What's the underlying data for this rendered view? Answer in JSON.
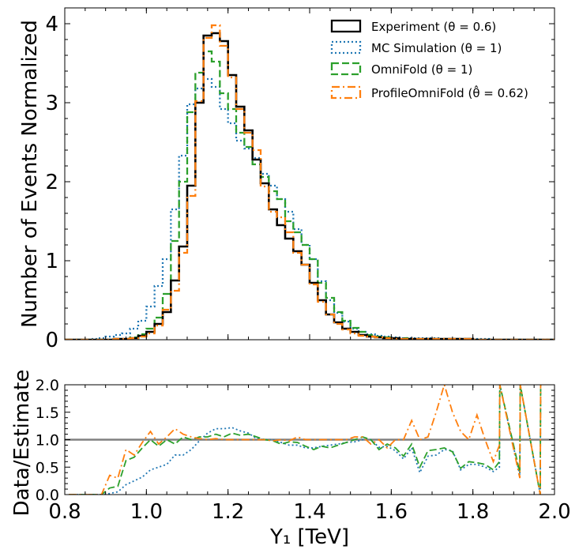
{
  "chart_data": [
    {
      "type": "step-histogram",
      "panel": "main",
      "xlabel": "Y₁ [TeV]",
      "ylabel": "Number of Events Normalized",
      "xlim": [
        0.8,
        2.0
      ],
      "ylim": [
        0,
        4.2
      ],
      "yticks": [
        "0",
        "1",
        "2",
        "3",
        "4"
      ],
      "bin_edges": [
        0.8,
        0.82,
        0.84,
        0.86,
        0.88,
        0.9,
        0.92,
        0.94,
        0.96,
        0.98,
        1.0,
        1.02,
        1.04,
        1.06,
        1.08,
        1.1,
        1.12,
        1.14,
        1.16,
        1.18,
        1.2,
        1.22,
        1.24,
        1.26,
        1.28,
        1.3,
        1.32,
        1.34,
        1.36,
        1.38,
        1.4,
        1.42,
        1.44,
        1.46,
        1.48,
        1.5,
        1.52,
        1.54,
        1.56,
        1.58,
        1.6,
        1.62,
        1.64,
        1.66,
        1.68,
        1.7,
        1.72,
        1.74,
        1.76,
        1.78,
        1.8,
        1.82,
        1.84,
        1.86,
        1.88,
        1.9,
        1.92,
        1.94,
        1.96,
        1.98,
        2.0
      ],
      "legend_position": "top-right",
      "series": [
        {
          "name": "Experiment (θ = 0.6)",
          "color": "#000000",
          "style": "solid",
          "values": [
            0,
            0,
            0,
            0,
            0,
            0,
            0.01,
            0.01,
            0.02,
            0.05,
            0.1,
            0.2,
            0.35,
            0.75,
            1.18,
            1.95,
            3.0,
            3.85,
            3.88,
            3.78,
            3.35,
            2.95,
            2.65,
            2.28,
            1.98,
            1.65,
            1.45,
            1.28,
            1.12,
            0.95,
            0.72,
            0.5,
            0.32,
            0.22,
            0.14,
            0.1,
            0.06,
            0.04,
            0.03,
            0.02,
            0.02,
            0.01,
            0.01,
            0.01,
            0.01,
            0.01,
            0.01,
            0.01,
            0.01,
            0.01,
            0,
            0,
            0,
            0,
            0,
            0,
            0,
            0,
            0,
            0
          ]
        },
        {
          "name": "MC Simulation (θ = 1)",
          "color": "#1f77b4",
          "style": "dotted",
          "values": [
            0,
            0,
            0,
            0.01,
            0.02,
            0.04,
            0.06,
            0.08,
            0.14,
            0.24,
            0.42,
            0.68,
            1.02,
            1.65,
            2.33,
            2.98,
            3.18,
            3.3,
            3.2,
            2.92,
            2.74,
            2.52,
            2.42,
            2.3,
            2.1,
            1.95,
            1.78,
            1.62,
            1.4,
            1.2,
            1.02,
            0.74,
            0.5,
            0.34,
            0.23,
            0.14,
            0.1,
            0.07,
            0.05,
            0.04,
            0.03,
            0.02,
            0.02,
            0.02,
            0.02,
            0.02,
            0.01,
            0.01,
            0.01,
            0.01,
            0.01,
            0.01,
            0,
            0,
            0,
            0,
            0,
            0,
            0,
            0
          ]
        },
        {
          "name": "OmniFold (θ = 1)",
          "color": "#2ca02c",
          "style": "dashed",
          "values": [
            0,
            0,
            0,
            0,
            0,
            0,
            0.01,
            0.01,
            0.03,
            0.07,
            0.14,
            0.28,
            0.58,
            1.25,
            2.0,
            2.88,
            3.38,
            3.65,
            3.52,
            3.12,
            2.92,
            2.62,
            2.44,
            2.22,
            2.06,
            1.88,
            1.78,
            1.5,
            1.36,
            1.2,
            1.02,
            0.72,
            0.53,
            0.35,
            0.24,
            0.15,
            0.1,
            0.06,
            0.04,
            0.03,
            0.02,
            0.02,
            0.01,
            0.01,
            0.01,
            0.01,
            0.01,
            0.01,
            0.01,
            0.01,
            0,
            0,
            0,
            0,
            0,
            0,
            0,
            0,
            0,
            0
          ]
        },
        {
          "name": "ProfileOmniFold (θ̂ = 0.62)",
          "color": "#ff7f0e",
          "style": "dashdot",
          "values": [
            0,
            0,
            0,
            0,
            0,
            0,
            0.01,
            0.01,
            0.02,
            0.04,
            0.08,
            0.18,
            0.38,
            0.62,
            1.1,
            1.82,
            3.02,
            3.82,
            3.98,
            3.72,
            3.32,
            2.92,
            2.62,
            2.4,
            1.94,
            1.62,
            1.55,
            1.36,
            1.1,
            0.95,
            0.7,
            0.48,
            0.32,
            0.2,
            0.13,
            0.08,
            0.05,
            0.04,
            0.03,
            0.02,
            0.01,
            0.01,
            0.01,
            0.01,
            0.01,
            0.01,
            0.01,
            0.01,
            0.01,
            0.01,
            0,
            0,
            0,
            0,
            0,
            0,
            0,
            0,
            0,
            0
          ]
        }
      ]
    },
    {
      "type": "line",
      "panel": "ratio",
      "xlabel": "Y₁ [TeV]",
      "ylabel": "Data/Estimate",
      "xlim": [
        0.8,
        2.0
      ],
      "ylim": [
        0,
        2.0
      ],
      "xticks": [
        "0.8",
        "1.0",
        "1.2",
        "1.4",
        "1.6",
        "1.8",
        "2.0"
      ],
      "yticks": [
        "0.0",
        "0.5",
        "1.0",
        "1.5",
        "2.0"
      ],
      "reference_line": 1.0,
      "reference_color": "#808080",
      "series": [
        {
          "name": "MC Simulation",
          "color": "#1f77b4",
          "style": "dotted",
          "x": [
            0.81,
            0.83,
            0.85,
            0.87,
            0.89,
            0.91,
            0.93,
            0.95,
            0.97,
            0.99,
            1.01,
            1.03,
            1.05,
            1.07,
            1.09,
            1.11,
            1.13,
            1.15,
            1.17,
            1.19,
            1.21,
            1.23,
            1.25,
            1.27,
            1.29,
            1.31,
            1.33,
            1.35,
            1.37,
            1.39,
            1.41,
            1.43,
            1.45,
            1.47,
            1.49,
            1.51,
            1.53,
            1.55,
            1.57,
            1.59,
            1.61,
            1.63,
            1.65,
            1.67,
            1.69,
            1.71,
            1.73,
            1.75,
            1.77,
            1.79,
            1.81,
            1.83,
            1.85,
            1.865,
            1.866,
            1.915,
            1.916,
            1.965,
            1.966
          ],
          "y": [
            0,
            0,
            0,
            0,
            0,
            0.02,
            0.05,
            0.18,
            0.25,
            0.32,
            0.45,
            0.5,
            0.55,
            0.72,
            0.72,
            0.82,
            0.98,
            1.12,
            1.2,
            1.2,
            1.22,
            1.16,
            1.12,
            1.02,
            1.0,
            1.0,
            0.95,
            0.9,
            0.9,
            0.85,
            0.85,
            0.88,
            0.9,
            0.92,
            0.95,
            0.96,
            1.0,
            1.0,
            0.86,
            0.88,
            0.8,
            0.65,
            0.85,
            0.4,
            0.7,
            0.72,
            0.82,
            0.8,
            0.45,
            0.55,
            0.55,
            0.5,
            0.42,
            0.5,
            2.0,
            0.35,
            2.0,
            0.0,
            2.0
          ]
        },
        {
          "name": "OmniFold",
          "color": "#2ca02c",
          "style": "dashed",
          "x": [
            0.81,
            0.83,
            0.85,
            0.87,
            0.89,
            0.91,
            0.93,
            0.95,
            0.97,
            0.99,
            1.01,
            1.03,
            1.05,
            1.07,
            1.09,
            1.11,
            1.13,
            1.15,
            1.17,
            1.19,
            1.21,
            1.23,
            1.25,
            1.27,
            1.29,
            1.31,
            1.33,
            1.35,
            1.37,
            1.39,
            1.41,
            1.43,
            1.45,
            1.47,
            1.49,
            1.51,
            1.53,
            1.55,
            1.57,
            1.59,
            1.61,
            1.63,
            1.65,
            1.67,
            1.69,
            1.71,
            1.73,
            1.75,
            1.77,
            1.79,
            1.81,
            1.83,
            1.85,
            1.865,
            1.866,
            1.915,
            1.916,
            1.965,
            1.966
          ],
          "y": [
            0,
            0,
            0,
            0,
            0,
            0.12,
            0.15,
            0.62,
            0.68,
            0.85,
            1.0,
            0.88,
            1.0,
            0.92,
            1.05,
            1.0,
            1.05,
            1.05,
            1.1,
            1.05,
            1.12,
            1.08,
            1.1,
            1.05,
            1.0,
            0.98,
            0.92,
            0.96,
            0.95,
            0.88,
            0.82,
            0.88,
            0.85,
            0.9,
            0.95,
            1.0,
            1.05,
            1.0,
            0.82,
            0.92,
            0.85,
            0.7,
            0.92,
            0.5,
            0.8,
            0.82,
            0.85,
            0.78,
            0.48,
            0.6,
            0.58,
            0.55,
            0.45,
            0.6,
            2.0,
            0.4,
            2.0,
            0.0,
            2.0
          ]
        },
        {
          "name": "ProfileOmniFold",
          "color": "#ff7f0e",
          "style": "dashdot",
          "x": [
            0.81,
            0.83,
            0.85,
            0.87,
            0.89,
            0.91,
            0.93,
            0.95,
            0.97,
            0.99,
            1.01,
            1.03,
            1.05,
            1.07,
            1.09,
            1.11,
            1.13,
            1.15,
            1.17,
            1.19,
            1.21,
            1.23,
            1.25,
            1.27,
            1.29,
            1.31,
            1.33,
            1.35,
            1.37,
            1.39,
            1.41,
            1.43,
            1.45,
            1.47,
            1.49,
            1.51,
            1.53,
            1.55,
            1.57,
            1.59,
            1.61,
            1.63,
            1.65,
            1.67,
            1.69,
            1.71,
            1.73,
            1.75,
            1.77,
            1.79,
            1.81,
            1.83,
            1.85,
            1.865,
            1.866,
            1.915,
            1.916,
            1.965,
            1.966
          ],
          "y": [
            0,
            0,
            0,
            0,
            0,
            0.35,
            0.3,
            0.82,
            0.72,
            0.95,
            1.15,
            0.92,
            1.05,
            1.2,
            1.1,
            1.05,
            1.02,
            1.0,
            1.02,
            1.0,
            1.0,
            1.0,
            1.0,
            1.0,
            1.0,
            0.98,
            1.0,
            0.98,
            1.05,
            1.0,
            1.0,
            1.0,
            1.0,
            1.0,
            1.0,
            1.05,
            1.05,
            0.92,
            1.0,
            0.85,
            1.0,
            1.0,
            1.35,
            1.0,
            1.05,
            1.5,
            2.0,
            1.5,
            1.15,
            1.0,
            1.45,
            1.0,
            0.6,
            0.9,
            2.0,
            0.3,
            2.0,
            0.0,
            2.0
          ]
        }
      ]
    }
  ]
}
